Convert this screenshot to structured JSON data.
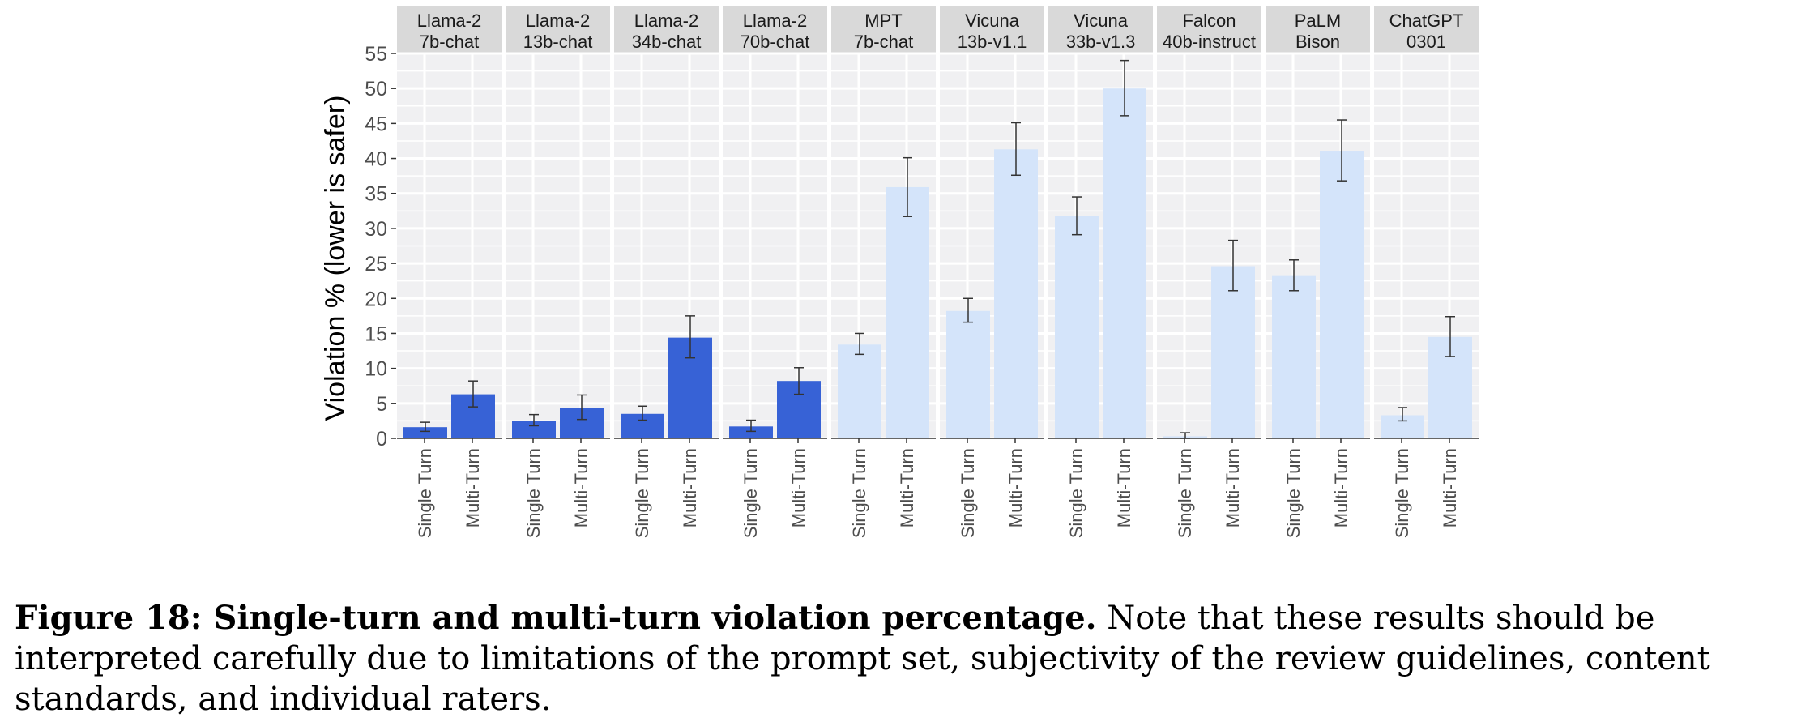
{
  "chart_data": {
    "type": "bar",
    "ylabel": "Violation % (lower is safer)",
    "xlabel": "",
    "ylim": [
      0,
      55
    ],
    "yticks": [
      "0",
      "5",
      "10",
      "15",
      "20",
      "25",
      "30",
      "35",
      "40",
      "45",
      "50",
      "55"
    ],
    "categories": [
      "Single Turn",
      "Multi-Turn"
    ],
    "colors": {
      "llama": "#3762d6",
      "other": "#d4e4fa",
      "panel": "#f0f0f2",
      "strip": "#d9d9d9",
      "grid": "#ffffff",
      "errorbar": "#333333"
    },
    "panels": [
      {
        "line1": "Llama-2",
        "line2": "7b-chat",
        "group": "llama",
        "values": [
          1.6,
          6.3
        ],
        "err_low": [
          1.0,
          4.5
        ],
        "err_high": [
          2.3,
          8.2
        ]
      },
      {
        "line1": "Llama-2",
        "line2": "13b-chat",
        "group": "llama",
        "values": [
          2.5,
          4.4
        ],
        "err_low": [
          1.8,
          2.7
        ],
        "err_high": [
          3.4,
          6.2
        ]
      },
      {
        "line1": "Llama-2",
        "line2": "34b-chat",
        "group": "llama",
        "values": [
          3.5,
          14.4
        ],
        "err_low": [
          2.6,
          11.5
        ],
        "err_high": [
          4.6,
          17.5
        ]
      },
      {
        "line1": "Llama-2",
        "line2": "70b-chat",
        "group": "llama",
        "values": [
          1.7,
          8.2
        ],
        "err_low": [
          1.0,
          6.3
        ],
        "err_high": [
          2.6,
          10.1
        ]
      },
      {
        "line1": "MPT",
        "line2": "7b-chat",
        "group": "other",
        "values": [
          13.4,
          35.9
        ],
        "err_low": [
          12.0,
          31.7
        ],
        "err_high": [
          15.0,
          40.1
        ]
      },
      {
        "line1": "Vicuna",
        "line2": "13b-v1.1",
        "group": "other",
        "values": [
          18.2,
          41.3
        ],
        "err_low": [
          16.6,
          37.6
        ],
        "err_high": [
          20.0,
          45.1
        ]
      },
      {
        "line1": "Vicuna",
        "line2": "33b-v1.3",
        "group": "other",
        "values": [
          31.8,
          50.0
        ],
        "err_low": [
          29.1,
          46.1
        ],
        "err_high": [
          34.5,
          54.0
        ]
      },
      {
        "line1": "Falcon",
        "line2": "40b-instruct",
        "group": "other",
        "values": [
          0.3,
          24.6
        ],
        "err_low": [
          0.0,
          21.1
        ],
        "err_high": [
          0.8,
          28.3
        ]
      },
      {
        "line1": "PaLM",
        "line2": "Bison",
        "group": "other",
        "values": [
          23.2,
          41.1
        ],
        "err_low": [
          21.1,
          36.8
        ],
        "err_high": [
          25.5,
          45.5
        ]
      },
      {
        "line1": "ChatGPT",
        "line2": "0301",
        "group": "other",
        "values": [
          3.3,
          14.5
        ],
        "err_low": [
          2.5,
          11.7
        ],
        "err_high": [
          4.4,
          17.4
        ]
      }
    ]
  },
  "caption": {
    "bold": "Figure 18: Single-turn and multi-turn violation percentage.",
    "text": " Note that these results should be interpreted carefully due to limitations of the prompt set, subjectivity of the review guidelines, content standards, and individual raters."
  }
}
